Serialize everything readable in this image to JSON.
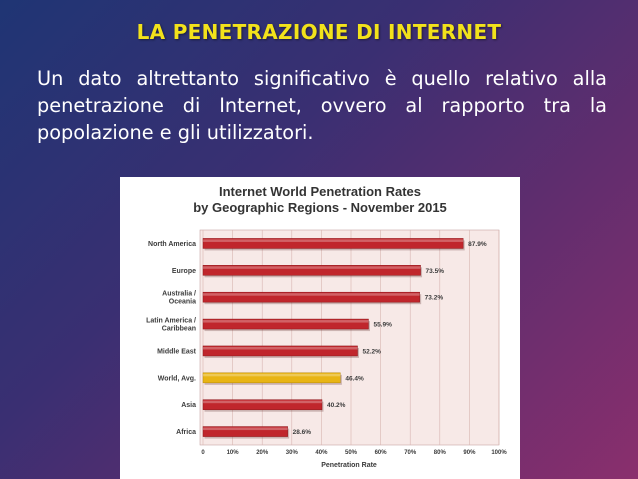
{
  "slide": {
    "title": "LA PENETRAZIONE DI INTERNET",
    "body": "Un dato altrettanto significativo è quello relativo alla penetrazione di Internet, ovvero al rapporto tra la popolazione e gli utilizzatori."
  },
  "colors": {
    "title": "#f2e21b",
    "bar": "#c0262c",
    "highlight_bar": "#e8b414"
  },
  "chart_data": {
    "type": "bar",
    "orientation": "horizontal",
    "title": "Internet World Penetration Rates",
    "subtitle": "by Geographic Regions - November 2015",
    "xlabel": "Penetration Rate",
    "ylabel": "",
    "xlim": [
      0,
      100
    ],
    "grid": true,
    "categories": [
      "North America",
      "Europe",
      "Australia / Oceania",
      "Latin America / Caribbean",
      "Middle East",
      "World, Avg.",
      "Asia",
      "Africa"
    ],
    "category_lines": [
      [
        "North America"
      ],
      [
        "Europe"
      ],
      [
        "Australia /",
        "Oceania"
      ],
      [
        "Latin America /",
        "Caribbean"
      ],
      [
        "Middle East"
      ],
      [
        "World, Avg."
      ],
      [
        "Asia"
      ],
      [
        "Africa"
      ]
    ],
    "values": [
      87.9,
      73.5,
      73.2,
      55.9,
      52.2,
      46.4,
      40.2,
      28.6
    ],
    "value_labels": [
      "87.9%",
      "73.5%",
      "73.2%",
      "55.9%",
      "52.2%",
      "46.4%",
      "40.2%",
      "28.6%"
    ],
    "highlight": "World, Avg.",
    "ticks": [
      "0",
      "10%",
      "20%",
      "30%",
      "40%",
      "50%",
      "60%",
      "70%",
      "80%",
      "90%",
      "100%"
    ]
  }
}
